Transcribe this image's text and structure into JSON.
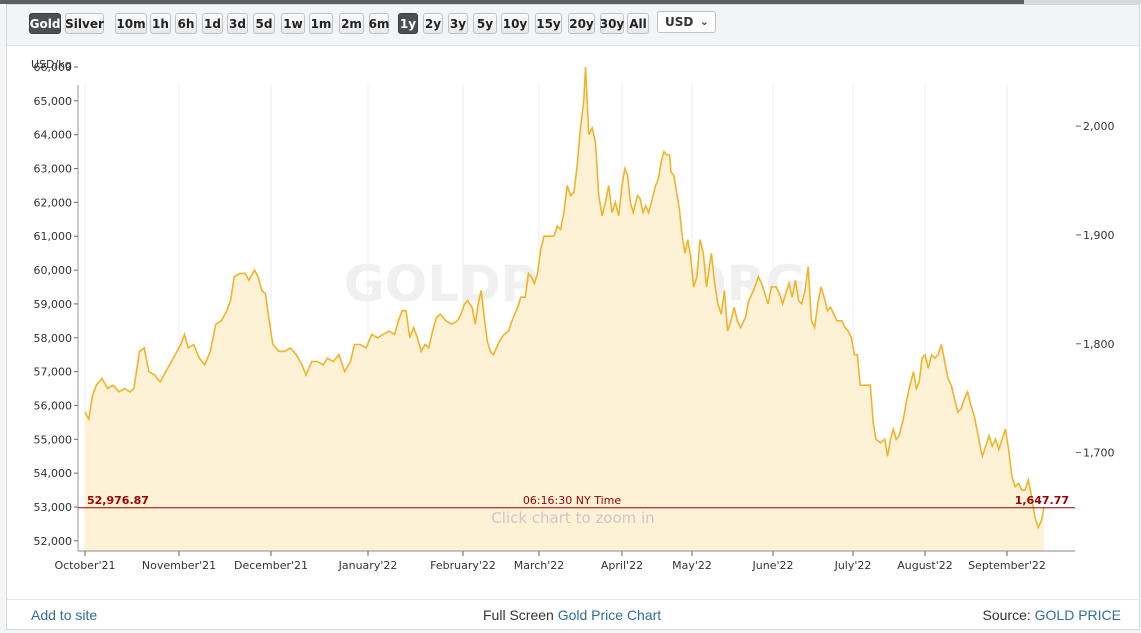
{
  "toolbar": {
    "metals": [
      {
        "label": "Gold",
        "active": true
      },
      {
        "label": "Silver",
        "active": false
      }
    ],
    "ranges": [
      {
        "label": "10m",
        "active": false
      },
      {
        "label": "1h",
        "active": false
      },
      {
        "label": "6h",
        "active": false
      },
      {
        "label": "1d",
        "active": false
      },
      {
        "label": "3d",
        "active": false
      },
      {
        "label": "5d",
        "active": false
      },
      {
        "label": "1w",
        "active": false
      },
      {
        "label": "1m",
        "active": false
      },
      {
        "label": "2m",
        "active": false
      },
      {
        "label": "6m",
        "active": false
      },
      {
        "label": "1y",
        "active": true
      },
      {
        "label": "2y",
        "active": false
      },
      {
        "label": "3y",
        "active": false
      },
      {
        "label": "5y",
        "active": false
      },
      {
        "label": "10y",
        "active": false
      },
      {
        "label": "15y",
        "active": false
      },
      {
        "label": "20y",
        "active": false
      },
      {
        "label": "30y",
        "active": false
      },
      {
        "label": "All",
        "active": false
      }
    ],
    "currency": "USD"
  },
  "chart_data": {
    "type": "area",
    "unit_label": "USD/kg",
    "watermark": "GOLDPRICE.ORG",
    "zoom_hint": "Click chart to zoom in",
    "crosshair": {
      "left_value": "52,976.87",
      "time": "06:16:30 NY Time",
      "right_value": "1,647.77",
      "y": 52976.87
    },
    "x_labels": [
      "October'21",
      "November'21",
      "December'21",
      "January'22",
      "February'22",
      "March'22",
      "April'22",
      "May'22",
      "June'22",
      "July'22",
      "August'22",
      "September'22"
    ],
    "y_left_ticks": [
      52000,
      53000,
      54000,
      55000,
      56000,
      57000,
      58000,
      59000,
      60000,
      61000,
      62000,
      63000,
      64000,
      65000,
      66000
    ],
    "y_left_tick_labels": [
      "52,000",
      "53,000",
      "54,000",
      "55,000",
      "56,000",
      "57,000",
      "58,000",
      "59,000",
      "60,000",
      "61,000",
      "62,000",
      "63,000",
      "64,000",
      "65,000",
      "66,000"
    ],
    "y_right_ticks": [
      1700,
      1800,
      1900,
      2000
    ],
    "y_right_tick_labels": [
      "1,700",
      "1,800",
      "1,900",
      "2,000"
    ],
    "ylim_left": [
      51700,
      66650
    ],
    "ylim_right": [
      1609.6,
      2074.5
    ],
    "grid": true,
    "series": [
      {
        "color": "#f0b429",
        "fill": "#fdf1d6",
        "points": [
          [
            0,
            55800
          ],
          [
            0.04,
            55600
          ],
          [
            0.08,
            56300
          ],
          [
            0.12,
            56600
          ],
          [
            0.18,
            56800
          ],
          [
            0.24,
            56500
          ],
          [
            0.3,
            56600
          ],
          [
            0.36,
            56400
          ],
          [
            0.42,
            56500
          ],
          [
            0.48,
            56400
          ],
          [
            0.52,
            56500
          ],
          [
            0.58,
            57600
          ],
          [
            0.63,
            57700
          ],
          [
            0.68,
            57000
          ],
          [
            0.74,
            56900
          ],
          [
            0.8,
            56700
          ],
          [
            0.86,
            57000
          ],
          [
            0.92,
            57300
          ],
          [
            0.98,
            57600
          ],
          [
            1.02,
            57800
          ],
          [
            1.06,
            58100
          ],
          [
            1.1,
            57700
          ],
          [
            1.16,
            57800
          ],
          [
            1.22,
            57400
          ],
          [
            1.28,
            57200
          ],
          [
            1.34,
            57600
          ],
          [
            1.4,
            58400
          ],
          [
            1.46,
            58500
          ],
          [
            1.52,
            58800
          ],
          [
            1.56,
            59100
          ],
          [
            1.6,
            59800
          ],
          [
            1.66,
            59900
          ],
          [
            1.72,
            59900
          ],
          [
            1.76,
            59700
          ],
          [
            1.82,
            60000
          ],
          [
            1.86,
            59800
          ],
          [
            1.9,
            59400
          ],
          [
            1.94,
            59300
          ],
          [
            1.98,
            58500
          ],
          [
            2.02,
            57800
          ],
          [
            2.08,
            57600
          ],
          [
            2.14,
            57600
          ],
          [
            2.2,
            57700
          ],
          [
            2.26,
            57500
          ],
          [
            2.32,
            57200
          ],
          [
            2.36,
            56900
          ],
          [
            2.42,
            57300
          ],
          [
            2.48,
            57300
          ],
          [
            2.54,
            57200
          ],
          [
            2.58,
            57400
          ],
          [
            2.64,
            57300
          ],
          [
            2.7,
            57500
          ],
          [
            2.76,
            57000
          ],
          [
            2.82,
            57300
          ],
          [
            2.86,
            57800
          ],
          [
            2.92,
            57800
          ],
          [
            2.98,
            57700
          ],
          [
            3.04,
            58100
          ],
          [
            3.1,
            58000
          ],
          [
            3.16,
            58100
          ],
          [
            3.22,
            58200
          ],
          [
            3.28,
            58100
          ],
          [
            3.32,
            58500
          ],
          [
            3.36,
            58800
          ],
          [
            3.4,
            58800
          ],
          [
            3.44,
            58000
          ],
          [
            3.48,
            58300
          ],
          [
            3.52,
            58000
          ],
          [
            3.56,
            57600
          ],
          [
            3.6,
            57800
          ],
          [
            3.64,
            57700
          ],
          [
            3.68,
            58200
          ],
          [
            3.72,
            58600
          ],
          [
            3.76,
            58700
          ],
          [
            3.82,
            58500
          ],
          [
            3.88,
            58400
          ],
          [
            3.94,
            58500
          ],
          [
            3.98,
            58700
          ],
          [
            4.02,
            59000
          ],
          [
            4.06,
            59100
          ],
          [
            4.12,
            58900
          ],
          [
            4.16,
            58400
          ],
          [
            4.2,
            59000
          ],
          [
            4.24,
            59400
          ],
          [
            4.28,
            58600
          ],
          [
            4.32,
            57900
          ],
          [
            4.36,
            57600
          ],
          [
            4.4,
            57500
          ],
          [
            4.44,
            57700
          ],
          [
            4.48,
            57900
          ],
          [
            4.54,
            58100
          ],
          [
            4.6,
            58200
          ],
          [
            4.66,
            58600
          ],
          [
            4.72,
            58900
          ],
          [
            4.76,
            59200
          ],
          [
            4.82,
            59200
          ],
          [
            4.86,
            59900
          ],
          [
            4.9,
            59800
          ],
          [
            4.94,
            59600
          ],
          [
            4.98,
            59900
          ],
          [
            5.02,
            60600
          ],
          [
            5.06,
            61000
          ],
          [
            5.12,
            61000
          ],
          [
            5.18,
            61000
          ],
          [
            5.22,
            61300
          ],
          [
            5.26,
            61200
          ],
          [
            5.3,
            61700
          ],
          [
            5.34,
            62500
          ],
          [
            5.38,
            62200
          ],
          [
            5.42,
            62300
          ],
          [
            5.46,
            63100
          ],
          [
            5.5,
            64200
          ],
          [
            5.54,
            65000
          ],
          [
            5.56,
            66000
          ],
          [
            5.6,
            64000
          ],
          [
            5.64,
            64200
          ],
          [
            5.68,
            63800
          ],
          [
            5.72,
            62200
          ],
          [
            5.76,
            61600
          ],
          [
            5.8,
            62000
          ],
          [
            5.84,
            62500
          ],
          [
            5.88,
            61700
          ],
          [
            5.92,
            62000
          ],
          [
            5.96,
            61600
          ],
          [
            6.0,
            62500
          ],
          [
            6.04,
            63000
          ],
          [
            6.08,
            62800
          ],
          [
            6.12,
            62000
          ],
          [
            6.16,
            61700
          ],
          [
            6.22,
            62200
          ],
          [
            6.26,
            62100
          ],
          [
            6.3,
            61700
          ],
          [
            6.34,
            61900
          ],
          [
            6.38,
            61700
          ],
          [
            6.42,
            62000
          ],
          [
            6.48,
            62500
          ],
          [
            6.52,
            62700
          ],
          [
            6.56,
            63200
          ],
          [
            6.6,
            63500
          ],
          [
            6.64,
            63400
          ],
          [
            6.68,
            63400
          ],
          [
            6.7,
            62900
          ],
          [
            6.74,
            62800
          ],
          [
            6.78,
            62300
          ],
          [
            6.82,
            61800
          ],
          [
            6.86,
            61000
          ],
          [
            6.9,
            60500
          ],
          [
            6.94,
            60900
          ],
          [
            6.98,
            60400
          ],
          [
            7.02,
            59500
          ],
          [
            7.06,
            59800
          ],
          [
            7.1,
            60900
          ],
          [
            7.14,
            60500
          ],
          [
            7.18,
            59500
          ],
          [
            7.24,
            60500
          ],
          [
            7.28,
            59600
          ],
          [
            7.32,
            59000
          ],
          [
            7.36,
            58700
          ],
          [
            7.4,
            59400
          ],
          [
            7.44,
            58200
          ],
          [
            7.48,
            58500
          ],
          [
            7.52,
            58900
          ],
          [
            7.56,
            58500
          ],
          [
            7.6,
            58300
          ],
          [
            7.66,
            58600
          ],
          [
            7.7,
            59100
          ],
          [
            7.76,
            59400
          ],
          [
            7.82,
            59800
          ],
          [
            7.86,
            59600
          ],
          [
            7.9,
            59300
          ],
          [
            7.94,
            59000
          ],
          [
            7.98,
            59500
          ],
          [
            8.04,
            59500
          ],
          [
            8.08,
            59300
          ],
          [
            8.12,
            59000
          ],
          [
            8.16,
            59300
          ],
          [
            8.2,
            59600
          ],
          [
            8.24,
            59200
          ],
          [
            8.28,
            59700
          ],
          [
            8.32,
            59100
          ],
          [
            8.36,
            59000
          ],
          [
            8.4,
            59400
          ],
          [
            8.44,
            60100
          ],
          [
            8.48,
            58500
          ],
          [
            8.52,
            58300
          ],
          [
            8.56,
            59000
          ],
          [
            8.6,
            59500
          ],
          [
            8.64,
            59200
          ],
          [
            8.68,
            58800
          ],
          [
            8.72,
            58900
          ],
          [
            8.76,
            58700
          ],
          [
            8.8,
            58500
          ],
          [
            8.86,
            58500
          ],
          [
            8.9,
            58300
          ],
          [
            8.94,
            58200
          ],
          [
            8.98,
            58000
          ],
          [
            9.02,
            57500
          ],
          [
            9.06,
            57500
          ],
          [
            9.1,
            56600
          ],
          [
            9.16,
            56600
          ],
          [
            9.2,
            56600
          ],
          [
            9.24,
            56600
          ],
          [
            9.28,
            55500
          ],
          [
            9.32,
            55000
          ],
          [
            9.38,
            54900
          ],
          [
            9.44,
            55000
          ],
          [
            9.48,
            54500
          ],
          [
            9.52,
            55000
          ],
          [
            9.56,
            55300
          ],
          [
            9.6,
            55000
          ],
          [
            9.64,
            55100
          ],
          [
            9.7,
            55600
          ],
          [
            9.74,
            56100
          ],
          [
            9.78,
            56500
          ],
          [
            9.84,
            57000
          ],
          [
            9.88,
            56500
          ],
          [
            9.92,
            56700
          ],
          [
            9.96,
            57400
          ],
          [
            10.0,
            57500
          ],
          [
            10.04,
            57100
          ],
          [
            10.08,
            57500
          ],
          [
            10.12,
            57400
          ],
          [
            10.16,
            57500
          ],
          [
            10.2,
            57800
          ],
          [
            10.24,
            57300
          ],
          [
            10.28,
            56800
          ],
          [
            10.32,
            56600
          ],
          [
            10.36,
            56200
          ],
          [
            10.4,
            55800
          ],
          [
            10.44,
            55900
          ],
          [
            10.48,
            56200
          ],
          [
            10.52,
            56400
          ],
          [
            10.56,
            56000
          ],
          [
            10.6,
            55700
          ],
          [
            10.64,
            55200
          ],
          [
            10.68,
            54700
          ],
          [
            10.7,
            54500
          ],
          [
            10.74,
            54800
          ],
          [
            10.78,
            55100
          ],
          [
            10.82,
            54800
          ],
          [
            10.86,
            55000
          ],
          [
            10.9,
            54700
          ],
          [
            10.94,
            55000
          ],
          [
            10.98,
            55300
          ],
          [
            11.02,
            54700
          ],
          [
            11.06,
            53900
          ],
          [
            11.1,
            53600
          ],
          [
            11.14,
            53700
          ],
          [
            11.18,
            53500
          ],
          [
            11.22,
            53500
          ],
          [
            11.26,
            53800
          ],
          [
            11.3,
            53300
          ],
          [
            11.34,
            52700
          ],
          [
            11.38,
            52400
          ],
          [
            11.42,
            52600
          ],
          [
            11.45,
            52977
          ]
        ]
      }
    ]
  },
  "footer": {
    "add_to_site": "Add to site",
    "full_screen_prefix": "Full Screen",
    "full_screen_link": "Gold Price Chart",
    "source_prefix": "Source:",
    "source_link": "GOLD PRICE"
  }
}
